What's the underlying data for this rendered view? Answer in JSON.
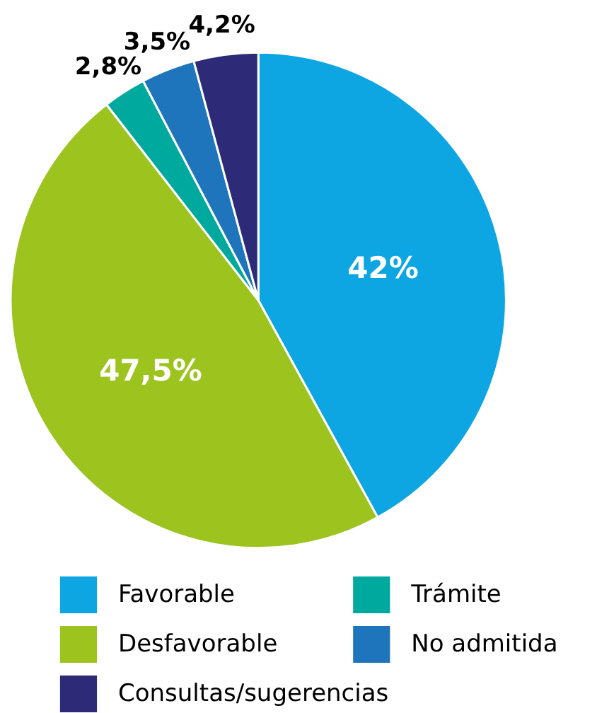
{
  "chart_data": {
    "type": "pie",
    "categories": [
      "Favorable",
      "Desfavorable",
      "Trámite",
      "No admitida",
      "Consultas/sugerencias"
    ],
    "values": [
      42,
      47.5,
      2.8,
      3.5,
      4.2
    ],
    "colors": [
      "#0ea5e3",
      "#9dc31f",
      "#00a99d",
      "#1f75bb",
      "#2d2a78"
    ],
    "value_labels": [
      "42%",
      "47,5%",
      "2,8%",
      "3,5%",
      "4,2%"
    ],
    "legend": "bottom"
  }
}
